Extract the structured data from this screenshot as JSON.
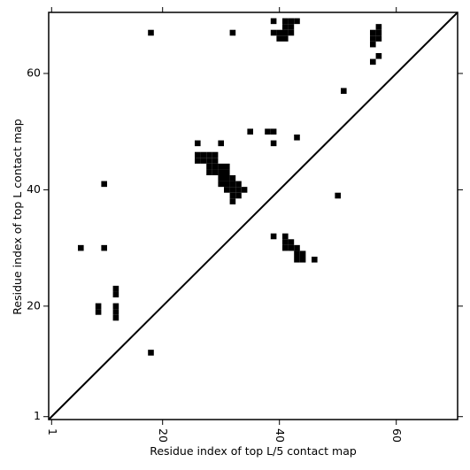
{
  "chart_data": {
    "type": "contact-map",
    "xlabel": "Residue index of top L/5 contact map",
    "ylabel": "Residue index of top L contact map",
    "xlim": [
      0.5,
      70.5
    ],
    "ylim": [
      0.5,
      70.5
    ],
    "xticks": [
      1,
      20,
      40,
      60
    ],
    "yticks": [
      1,
      20,
      40,
      60
    ],
    "series": [
      {
        "color": "#000000",
        "x": [
          18,
          32,
          39,
          41,
          42,
          43,
          41,
          42,
          39,
          40,
          41,
          42,
          40,
          41,
          56,
          56,
          57,
          57,
          57,
          56,
          57,
          56,
          51,
          35,
          38,
          39,
          39,
          43,
          26,
          30,
          10,
          50,
          26,
          27,
          28,
          29,
          26,
          27,
          28,
          29,
          28,
          29,
          30,
          31,
          28,
          29,
          30,
          31,
          30,
          31,
          32,
          30,
          31,
          32,
          33,
          31,
          32,
          33,
          34,
          32,
          33,
          32
        ],
        "y": [
          67,
          67,
          69,
          69,
          69,
          69,
          68,
          68,
          67,
          67,
          67,
          67,
          66,
          66,
          67,
          66,
          68,
          67,
          66,
          65,
          63,
          62,
          57,
          50,
          50,
          50,
          48,
          49,
          48,
          48,
          41,
          39,
          46,
          46,
          46,
          46,
          45,
          45,
          45,
          45,
          44,
          44,
          44,
          44,
          43,
          43,
          43,
          43,
          42,
          42,
          42,
          41,
          41,
          41,
          41,
          40,
          40,
          40,
          40,
          39,
          39,
          38
        ]
      },
      {
        "color": "#000000",
        "x": [
          6,
          10,
          12,
          12,
          9,
          9,
          12,
          12,
          12,
          18,
          39,
          41,
          41,
          42,
          41,
          42,
          43,
          43,
          44,
          43,
          44,
          46
        ],
        "y": [
          30,
          30,
          23,
          22,
          20,
          19,
          20,
          19,
          18,
          12,
          32,
          32,
          31,
          31,
          30,
          30,
          30,
          29,
          29,
          28,
          28,
          28
        ]
      }
    ]
  }
}
